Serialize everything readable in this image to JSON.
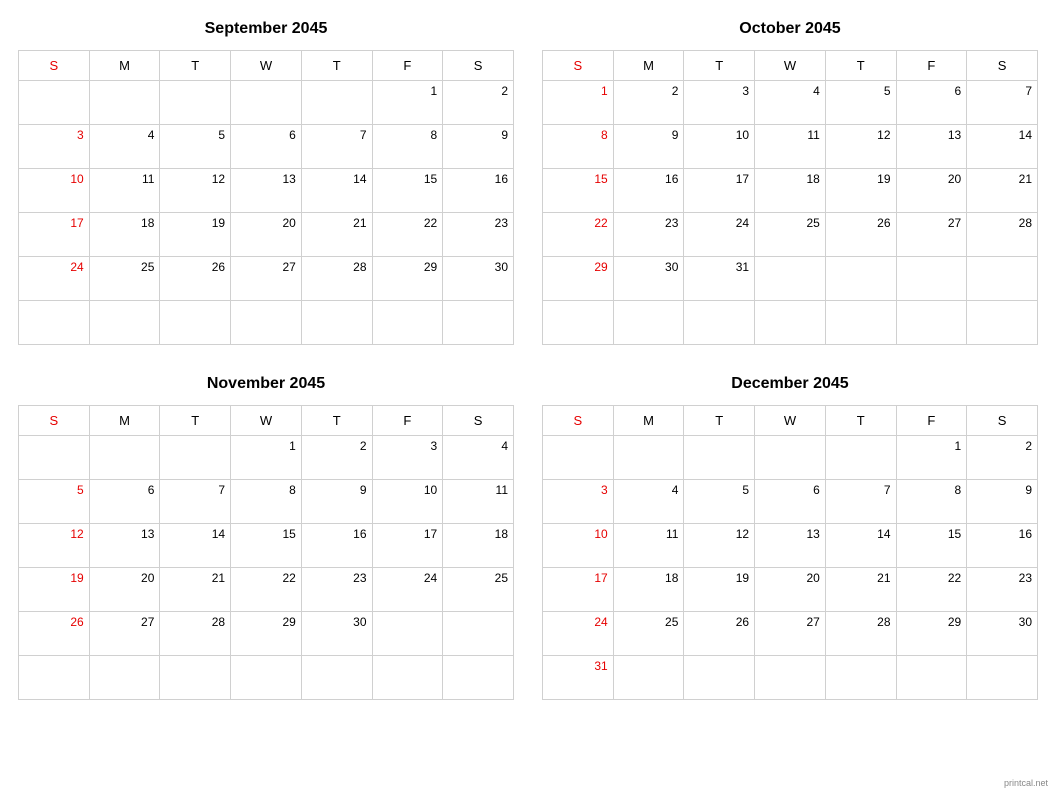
{
  "attribution": "printcal.net",
  "day_headers": [
    "S",
    "M",
    "T",
    "W",
    "T",
    "F",
    "S"
  ],
  "colors": {
    "sunday": "#e60000",
    "border": "#d0d0d0",
    "text": "#000000",
    "background": "#ffffff"
  },
  "months": [
    {
      "title": "September 2045",
      "weeks": [
        [
          "",
          "",
          "",
          "",
          "",
          "1",
          "2"
        ],
        [
          "3",
          "4",
          "5",
          "6",
          "7",
          "8",
          "9"
        ],
        [
          "10",
          "11",
          "12",
          "13",
          "14",
          "15",
          "16"
        ],
        [
          "17",
          "18",
          "19",
          "20",
          "21",
          "22",
          "23"
        ],
        [
          "24",
          "25",
          "26",
          "27",
          "28",
          "29",
          "30"
        ],
        [
          "",
          "",
          "",
          "",
          "",
          "",
          ""
        ]
      ]
    },
    {
      "title": "October 2045",
      "weeks": [
        [
          "1",
          "2",
          "3",
          "4",
          "5",
          "6",
          "7"
        ],
        [
          "8",
          "9",
          "10",
          "11",
          "12",
          "13",
          "14"
        ],
        [
          "15",
          "16",
          "17",
          "18",
          "19",
          "20",
          "21"
        ],
        [
          "22",
          "23",
          "24",
          "25",
          "26",
          "27",
          "28"
        ],
        [
          "29",
          "30",
          "31",
          "",
          "",
          "",
          ""
        ],
        [
          "",
          "",
          "",
          "",
          "",
          "",
          ""
        ]
      ]
    },
    {
      "title": "November 2045",
      "weeks": [
        [
          "",
          "",
          "",
          "1",
          "2",
          "3",
          "4"
        ],
        [
          "5",
          "6",
          "7",
          "8",
          "9",
          "10",
          "11"
        ],
        [
          "12",
          "13",
          "14",
          "15",
          "16",
          "17",
          "18"
        ],
        [
          "19",
          "20",
          "21",
          "22",
          "23",
          "24",
          "25"
        ],
        [
          "26",
          "27",
          "28",
          "29",
          "30",
          "",
          ""
        ],
        [
          "",
          "",
          "",
          "",
          "",
          "",
          ""
        ]
      ]
    },
    {
      "title": "December 2045",
      "weeks": [
        [
          "",
          "",
          "",
          "",
          "",
          "1",
          "2"
        ],
        [
          "3",
          "4",
          "5",
          "6",
          "7",
          "8",
          "9"
        ],
        [
          "10",
          "11",
          "12",
          "13",
          "14",
          "15",
          "16"
        ],
        [
          "17",
          "18",
          "19",
          "20",
          "21",
          "22",
          "23"
        ],
        [
          "24",
          "25",
          "26",
          "27",
          "28",
          "29",
          "30"
        ],
        [
          "31",
          "",
          "",
          "",
          "",
          "",
          ""
        ]
      ]
    }
  ]
}
